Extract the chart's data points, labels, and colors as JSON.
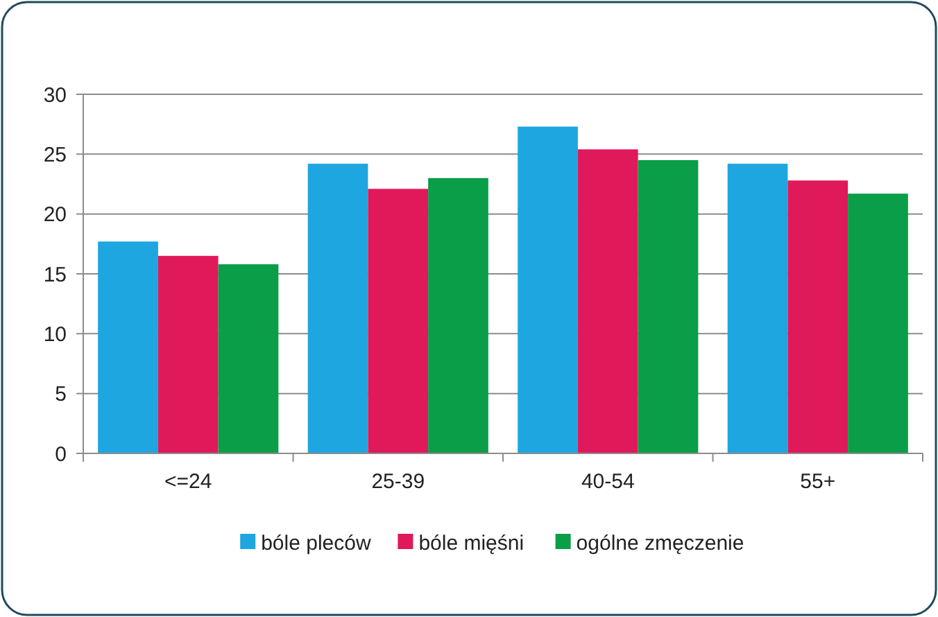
{
  "chart_data": {
    "type": "bar",
    "categories": [
      "<=24",
      "25-39",
      "40-54",
      "55+"
    ],
    "series": [
      {
        "name": "bóle pleców",
        "color": "#1ea6e0",
        "values": [
          17.7,
          24.2,
          27.3,
          24.2
        ]
      },
      {
        "name": "bóle mięśni",
        "color": "#e0195a",
        "values": [
          16.5,
          22.1,
          25.4,
          22.8
        ]
      },
      {
        "name": "ogólne zmęczenie",
        "color": "#0a9e48",
        "values": [
          15.8,
          23,
          24.5,
          21.7
        ]
      }
    ],
    "ylim": [
      0,
      30
    ],
    "yticks": [
      0,
      5,
      10,
      15,
      20,
      25,
      30
    ],
    "grid": "y",
    "legend": "bottom"
  }
}
